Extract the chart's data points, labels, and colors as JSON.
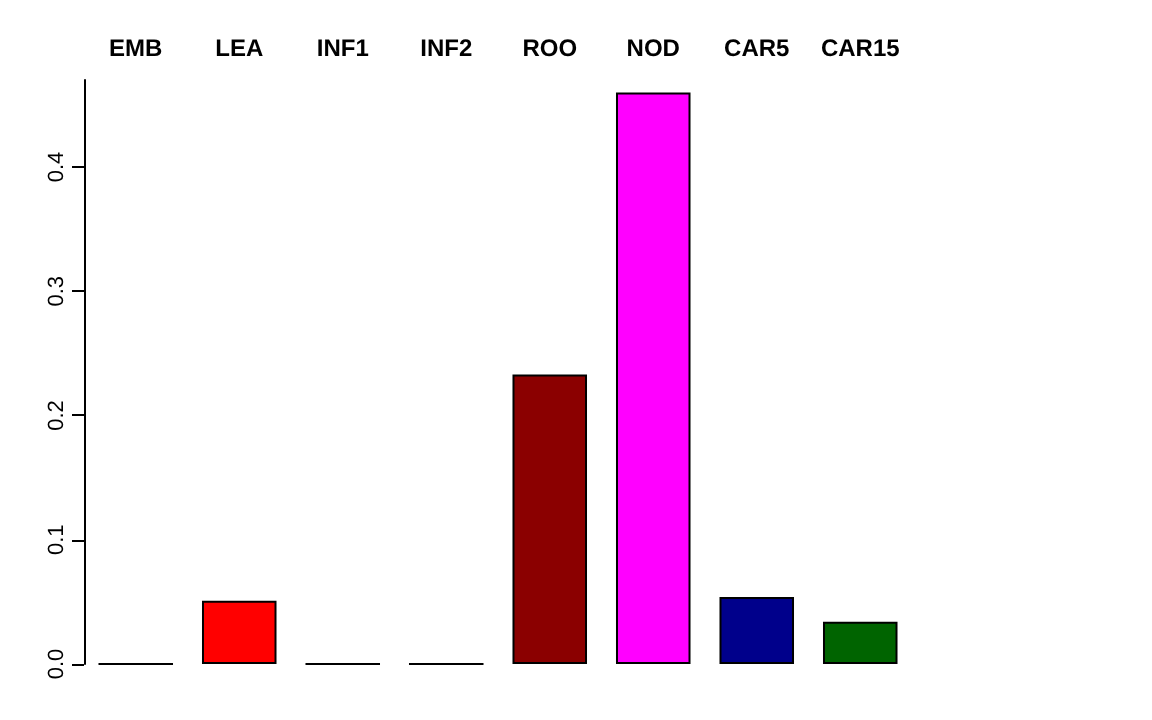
{
  "chart_data": {
    "type": "bar",
    "categories": [
      "EMB",
      "LEA",
      "INF1",
      "INF2",
      "ROO",
      "NOD",
      "CAR5",
      "CAR15"
    ],
    "values": [
      0,
      0.051,
      0,
      0,
      0.233,
      0.46,
      0.054,
      0.034
    ],
    "colors": [
      "#000000",
      "#ff0000",
      "#000000",
      "#000000",
      "#8b0000",
      "#ff00ff",
      "#00008b",
      "#006400"
    ],
    "ylim": [
      0,
      0.47
    ],
    "yticks": [
      {
        "value": 0,
        "label": "0.0"
      },
      0.1,
      0.2,
      0.3,
      0.4
    ],
    "grid": false
  }
}
